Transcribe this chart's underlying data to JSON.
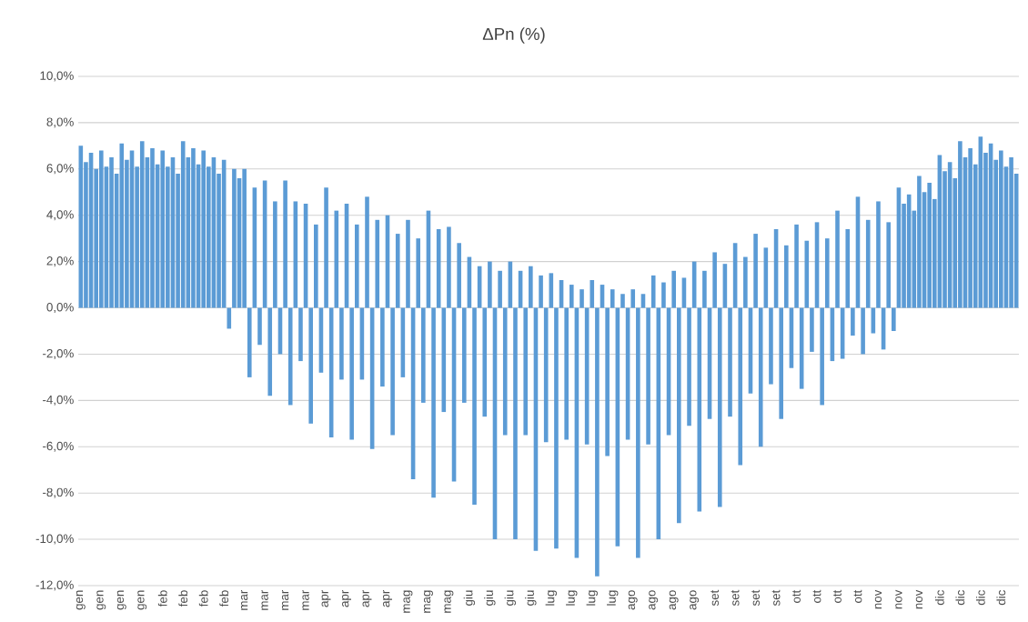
{
  "chart_data": {
    "type": "bar",
    "title": "ΔPn (%)",
    "categories": [
      "gen",
      null,
      null,
      null,
      "gen",
      null,
      null,
      null,
      "gen",
      null,
      null,
      null,
      "gen",
      null,
      null,
      null,
      "feb",
      null,
      null,
      null,
      "feb",
      null,
      null,
      null,
      "feb",
      null,
      null,
      null,
      "feb",
      null,
      null,
      null,
      "mar",
      null,
      null,
      null,
      "mar",
      null,
      null,
      null,
      "mar",
      null,
      null,
      null,
      "mar",
      null,
      null,
      null,
      "apr",
      null,
      null,
      null,
      "apr",
      null,
      null,
      null,
      "apr",
      null,
      null,
      null,
      "apr",
      null,
      null,
      null,
      "mag",
      null,
      null,
      null,
      "mag",
      null,
      null,
      null,
      "mag",
      null,
      null,
      null,
      "giu",
      null,
      null,
      null,
      "giu",
      null,
      null,
      null,
      "giu",
      null,
      null,
      null,
      "giu",
      null,
      null,
      null,
      "lug",
      null,
      null,
      null,
      "lug",
      null,
      null,
      null,
      "lug",
      null,
      null,
      null,
      "lug",
      null,
      null,
      null,
      "ago",
      null,
      null,
      null,
      "ago",
      null,
      null,
      null,
      "ago",
      null,
      null,
      null,
      "ago",
      null,
      null,
      null,
      "set",
      null,
      null,
      null,
      "set",
      null,
      null,
      null,
      "set",
      null,
      null,
      null,
      "set",
      null,
      null,
      null,
      "ott",
      null,
      null,
      null,
      "ott",
      null,
      null,
      null,
      "ott",
      null,
      null,
      null,
      "ott",
      null,
      null,
      null,
      "nov",
      null,
      null,
      null,
      "nov",
      null,
      null,
      null,
      "nov",
      null,
      null,
      null,
      "dic",
      null,
      null,
      null,
      "dic",
      null,
      null,
      null,
      "dic",
      null,
      null,
      null,
      "dic",
      null,
      null,
      null
    ],
    "values": [
      7.0,
      6.3,
      6.7,
      6.0,
      6.8,
      6.1,
      6.5,
      5.8,
      7.1,
      6.4,
      6.8,
      6.1,
      7.2,
      6.5,
      6.9,
      6.2,
      6.8,
      6.1,
      6.5,
      5.8,
      7.2,
      6.5,
      6.9,
      6.2,
      6.8,
      6.1,
      6.5,
      5.8,
      6.4,
      -0.9,
      6.0,
      5.6,
      6.0,
      -3.0,
      5.2,
      -1.6,
      5.5,
      -3.8,
      4.6,
      -2.0,
      5.5,
      -4.2,
      4.6,
      -2.3,
      4.5,
      -5.0,
      3.6,
      -2.8,
      5.2,
      -5.6,
      4.2,
      -3.1,
      4.5,
      -5.7,
      3.6,
      -3.1,
      4.8,
      -6.1,
      3.8,
      -3.4,
      4.0,
      -5.5,
      3.2,
      -3.0,
      3.8,
      -7.4,
      3.0,
      -4.1,
      4.2,
      -8.2,
      3.4,
      -4.5,
      3.5,
      -7.5,
      2.8,
      -4.1,
      2.2,
      -8.5,
      1.8,
      -4.7,
      2.0,
      -10.0,
      1.6,
      -5.5,
      2.0,
      -10.0,
      1.6,
      -5.5,
      1.8,
      -10.5,
      1.4,
      -5.8,
      1.5,
      -10.4,
      1.2,
      -5.7,
      1.0,
      -10.8,
      0.8,
      -5.9,
      1.2,
      -11.6,
      1.0,
      -6.4,
      0.8,
      -10.3,
      0.6,
      -5.7,
      0.8,
      -10.8,
      0.6,
      -5.9,
      1.4,
      -10.0,
      1.1,
      -5.5,
      1.6,
      -9.3,
      1.3,
      -5.1,
      2.0,
      -8.8,
      1.6,
      -4.8,
      2.4,
      -8.6,
      1.9,
      -4.7,
      2.8,
      -6.8,
      2.2,
      -3.7,
      3.2,
      -6.0,
      2.6,
      -3.3,
      3.4,
      -4.8,
      2.7,
      -2.6,
      3.6,
      -3.5,
      2.9,
      -1.9,
      3.7,
      -4.2,
      3.0,
      -2.3,
      4.2,
      -2.2,
      3.4,
      -1.2,
      4.8,
      -2.0,
      3.8,
      -1.1,
      4.6,
      -1.8,
      3.7,
      -1.0,
      5.2,
      4.5,
      4.9,
      4.2,
      5.7,
      5.0,
      5.4,
      4.7,
      6.6,
      5.9,
      6.3,
      5.6,
      7.2,
      6.5,
      6.9,
      6.2,
      7.4,
      6.7,
      7.1,
      6.4,
      6.8,
      6.1,
      6.5,
      5.8
    ],
    "color": "#5b9bd5",
    "ylim": [
      -12,
      10
    ],
    "yticks": [
      {
        "value": -12,
        "label": "-12,0%"
      },
      {
        "value": -10,
        "label": "-10,0%"
      },
      {
        "value": -8,
        "label": "-8,0%"
      },
      {
        "value": -6,
        "label": "-6,0%"
      },
      {
        "value": -4,
        "label": "-4,0%"
      },
      {
        "value": -2,
        "label": "-2,0%"
      },
      {
        "value": 0,
        "label": "0,0%"
      },
      {
        "value": 2,
        "label": "2,0%"
      },
      {
        "value": 4,
        "label": "4,0%"
      },
      {
        "value": 6,
        "label": "6,0%"
      },
      {
        "value": 8,
        "label": "8,0%"
      },
      {
        "value": 10,
        "label": "10,0%"
      }
    ],
    "grid": "y"
  }
}
